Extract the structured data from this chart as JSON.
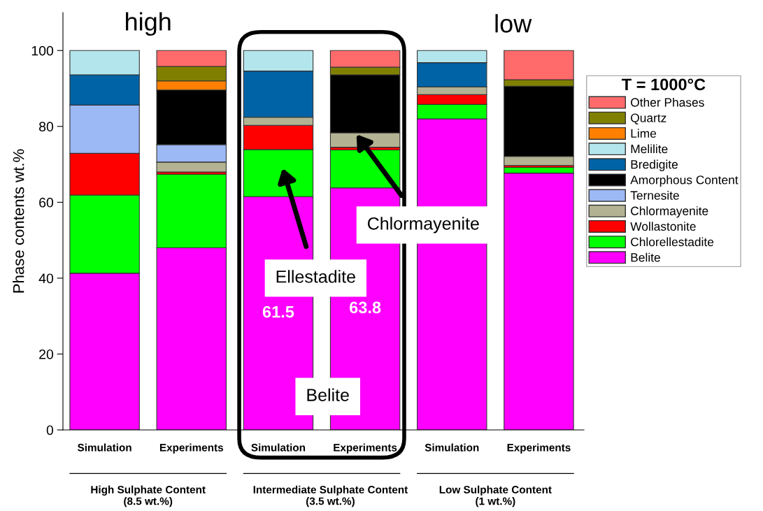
{
  "chart_data": {
    "type": "bar",
    "stacked": true,
    "ylabel": "Phase contents wt.%",
    "legend_title": "T = 1000°C",
    "categories": [
      "Simulation",
      "Experiments",
      "Simulation",
      "Experiments",
      "Simulation",
      "Experiments"
    ],
    "series": [
      {
        "name": "Belite",
        "color": "#ff00ff",
        "values": [
          41.3,
          48.0,
          61.5,
          63.8,
          82.0,
          67.7
        ],
        "value_labels": [
          null,
          null,
          "61.5",
          "63.8",
          null,
          null
        ]
      },
      {
        "name": "Chlorellestadite",
        "color": "#00ff00",
        "values": [
          20.6,
          19.4,
          12.4,
          10.0,
          3.8,
          1.5
        ]
      },
      {
        "name": "Wollastonite",
        "color": "#ff0000",
        "values": [
          11.0,
          0.6,
          6.4,
          0.7,
          2.6,
          0.5
        ]
      },
      {
        "name": "Chlormayenite",
        "color": "#b3b393",
        "values": [
          0,
          2.6,
          2.1,
          3.8,
          2.0,
          2.4
        ]
      },
      {
        "name": "Ternesite",
        "color": "#9cb8f5",
        "values": [
          12.7,
          4.6,
          0,
          0,
          0,
          0
        ]
      },
      {
        "name": "Amorphous Content",
        "color": "#000000",
        "values": [
          0,
          14.4,
          0,
          15.3,
          0,
          18.5
        ]
      },
      {
        "name": "Bredigite",
        "color": "#0063a6",
        "values": [
          8.0,
          0,
          12.2,
          0,
          6.4,
          0
        ]
      },
      {
        "name": "Melilite",
        "color": "#b3e6ec",
        "values": [
          6.4,
          0,
          5.4,
          0,
          3.2,
          0
        ]
      },
      {
        "name": "Lime",
        "color": "#ff8000",
        "values": [
          0,
          2.4,
          0,
          0,
          0,
          0
        ]
      },
      {
        "name": "Quartz",
        "color": "#808000",
        "values": [
          0,
          3.8,
          0,
          2.0,
          0,
          1.7
        ]
      },
      {
        "name": "Other Phases",
        "color": "#ff6b6b",
        "values": [
          0,
          4.2,
          0,
          4.4,
          0,
          7.7
        ]
      }
    ],
    "ylim": [
      0,
      110
    ],
    "yticks": [
      0,
      20,
      40,
      60,
      80,
      100
    ],
    "grid": false,
    "legend": "right",
    "annotations": [
      "high",
      "low",
      "Chlormayenite",
      "Ellestadite",
      "Belite",
      "High Sulphate Content\n(8.5 wt.%)",
      "Intermediate Sulphate Content\n(3.5 wt.%)",
      "Low Sulphate Content\n(1 wt.%)"
    ]
  }
}
